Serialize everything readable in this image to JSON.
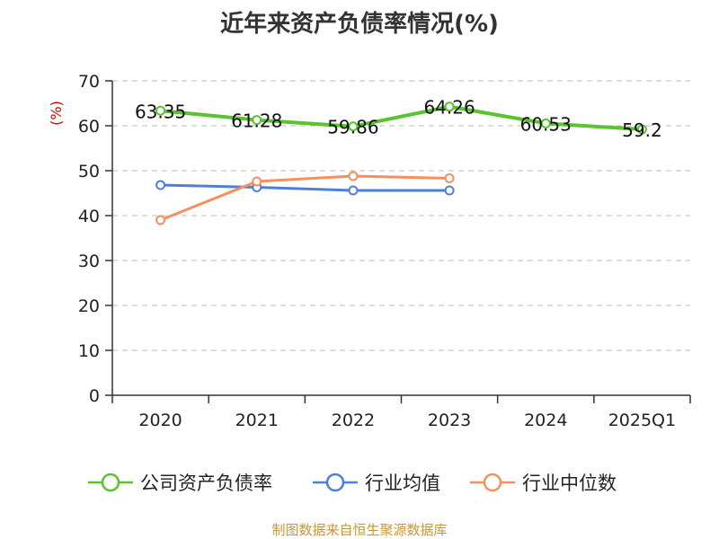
{
  "title": "近年来资产负债率情况(%)",
  "source_note": "制图数据来自恒生聚源数据库",
  "chart_data": {
    "type": "line",
    "title": "近年来资产负债率情况(%)",
    "xlabel": "",
    "ylabel": "(%)",
    "categories": [
      "2020",
      "2021",
      "2022",
      "2023",
      "2024",
      "2025Q1"
    ],
    "ylim": [
      0,
      70
    ],
    "yticks": [
      0,
      10,
      20,
      30,
      40,
      50,
      60,
      70
    ],
    "grid": true,
    "legend_position": "bottom",
    "series": [
      {
        "name": "公司资产负债率",
        "color": "#5ac42c",
        "values": [
          63.35,
          61.28,
          59.86,
          64.26,
          60.53,
          59.2
        ],
        "labels": [
          "63.35",
          "61.28",
          "59.86",
          "64.26",
          "60.53",
          "59.2"
        ],
        "show_labels": true
      },
      {
        "name": "行业均值",
        "color": "#4f7fdd",
        "values": [
          46.8,
          46.3,
          45.6,
          45.6,
          null,
          null
        ],
        "show_labels": false
      },
      {
        "name": "行业中位数",
        "color": "#f58f5f",
        "values": [
          39.0,
          47.6,
          48.8,
          48.3,
          null,
          null
        ],
        "show_labels": false
      }
    ]
  }
}
